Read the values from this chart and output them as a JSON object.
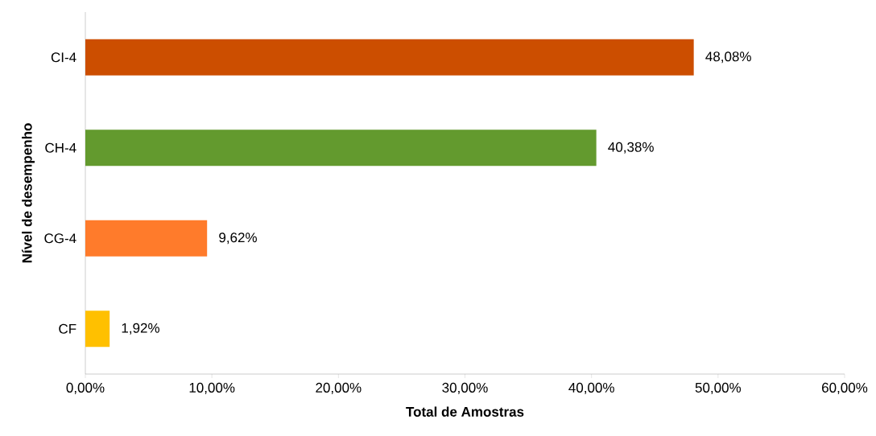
{
  "chart_data": {
    "type": "bar",
    "orientation": "horizontal",
    "xlabel": "Total de Amostras",
    "ylabel": "Nível de desempenho",
    "categories": [
      "CI-4",
      "CH-4",
      "CG-4",
      "CF"
    ],
    "values": [
      48.08,
      40.38,
      9.62,
      1.92
    ],
    "colors": [
      "#cc4e00",
      "#639a2e",
      "#ff7b2b",
      "#ffc000"
    ],
    "value_labels": [
      "48,08%",
      "40,38%",
      "9,62%",
      "1,92%"
    ],
    "xlim": [
      0,
      60
    ],
    "xticks": [
      {
        "value": 0,
        "label": "0,00%"
      },
      {
        "value": 10,
        "label": "10,00%"
      },
      {
        "value": 20,
        "label": "20,00%"
      },
      {
        "value": 30,
        "label": "30,00%"
      },
      {
        "value": 40,
        "label": "40,00%"
      },
      {
        "value": 50,
        "label": "50,00%"
      },
      {
        "value": 60,
        "label": "60,00%"
      }
    ],
    "grid": false
  }
}
